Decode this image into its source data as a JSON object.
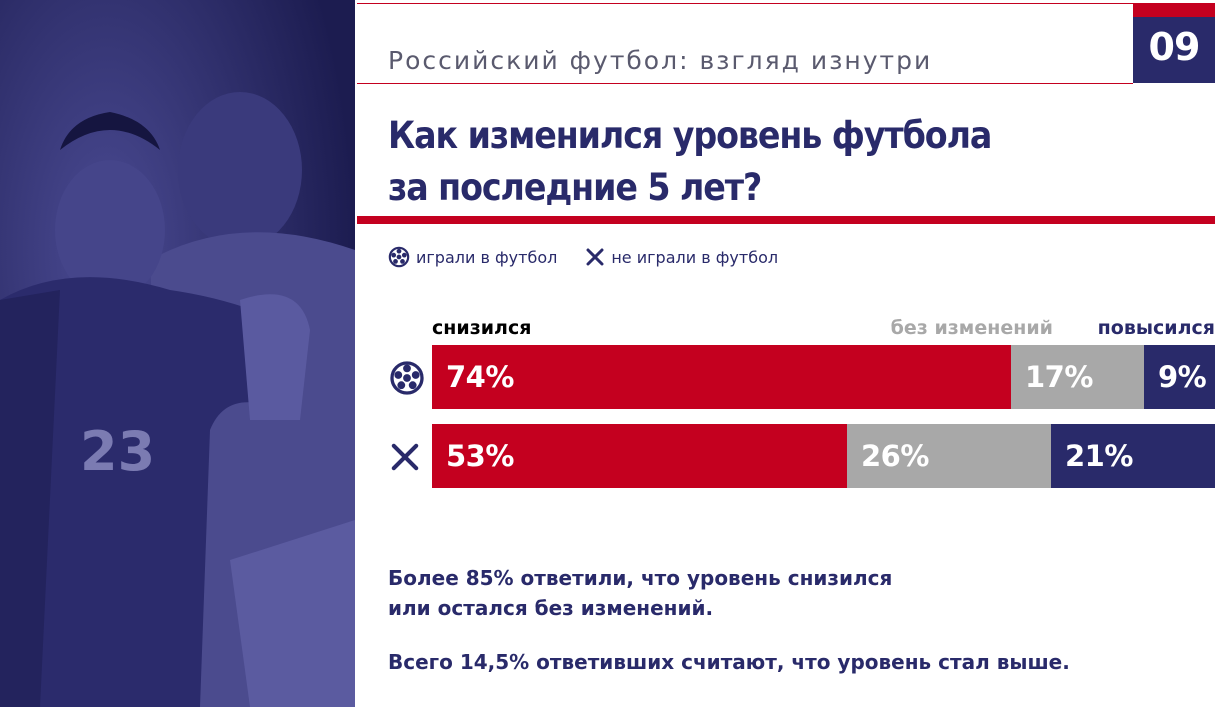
{
  "header": {
    "subtitle": "Российский футбол: взгляд изнутри",
    "page_number": "09"
  },
  "title_lines": [
    "Как изменился уровень футбола",
    "за последние 5 лет?"
  ],
  "legend": [
    {
      "icon": "football-icon",
      "label": "играли в футбол"
    },
    {
      "icon": "cross-icon",
      "label": "не играли в футбол"
    }
  ],
  "colors": {
    "navy": "#292a6a",
    "red": "#c4001f",
    "grey": "#a8a8a8"
  },
  "chart_data": {
    "type": "bar",
    "orientation": "horizontal",
    "stacked": true,
    "percent_scale": [
      0,
      100
    ],
    "categories": [
      "играли в футбол",
      "не играли в футбол"
    ],
    "category_icons": [
      "football-icon",
      "cross-icon"
    ],
    "series": [
      {
        "name": "снизился",
        "color": "#c4001f",
        "values": [
          74,
          53
        ],
        "labels": [
          "74%",
          "53%"
        ]
      },
      {
        "name": "без изменений",
        "color": "#a8a8a8",
        "values": [
          17,
          26
        ],
        "labels": [
          "17%",
          "26%"
        ]
      },
      {
        "name": "повысился",
        "color": "#292a6a",
        "values": [
          9,
          21
        ],
        "labels": [
          "9%",
          "21%"
        ]
      }
    ]
  },
  "notes": [
    "Более 85% ответили, что уровень снизился",
    "или остался без изменений.",
    "Всего 14,5% ответивших считают, что уровень стал выше."
  ]
}
